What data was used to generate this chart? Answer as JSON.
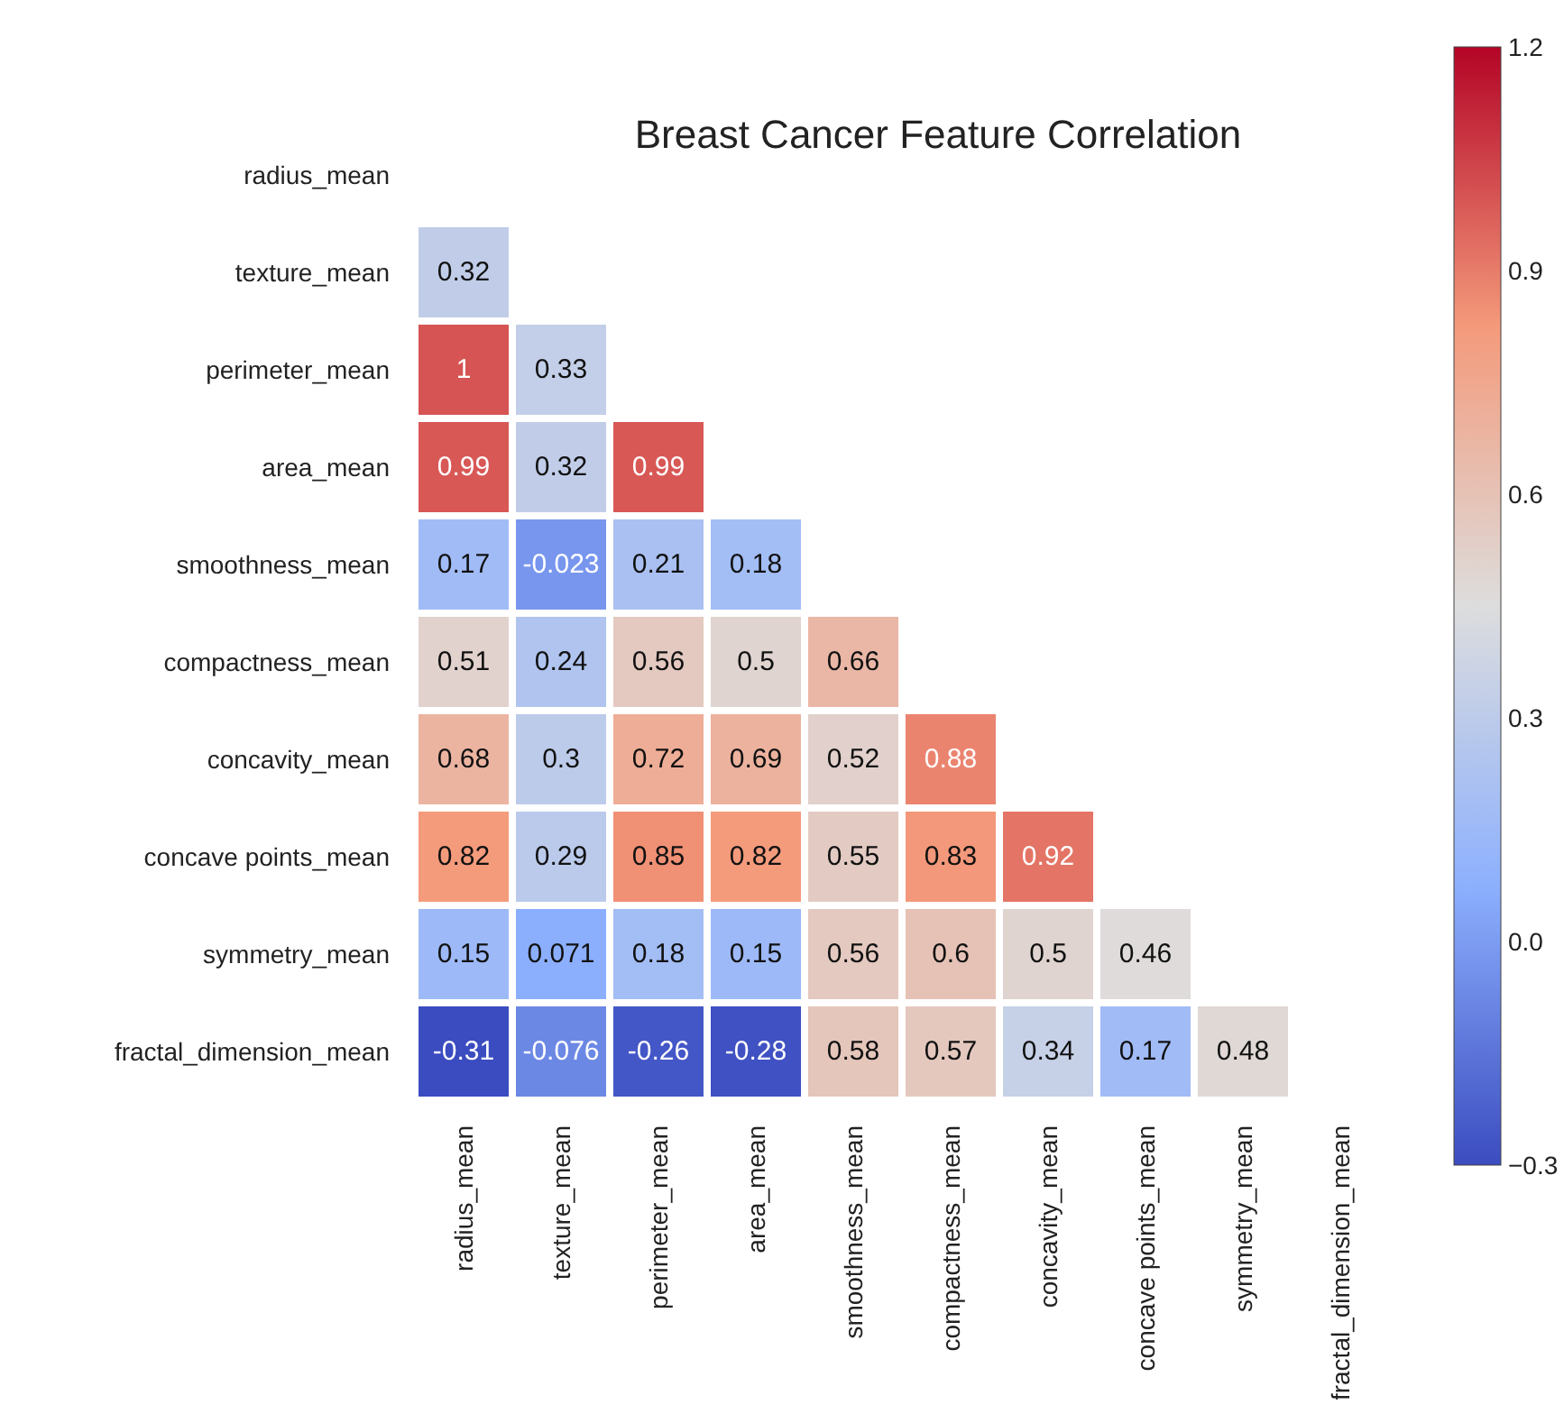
{
  "chart_data": {
    "type": "heatmap",
    "title": "Breast Cancer Feature Correlation",
    "categories": [
      "radius_mean",
      "texture_mean",
      "perimeter_mean",
      "area_mean",
      "smoothness_mean",
      "compactness_mean",
      "concavity_mean",
      "concave points_mean",
      "symmetry_mean",
      "fractal_dimension_mean"
    ],
    "y_categories": [
      "radius_mean",
      "texture_mean",
      "perimeter_mean",
      "area_mean",
      "smoothness_mean",
      "compactness_mean",
      "concavity_mean",
      "concave points_mean",
      "symmetry_mean",
      "fractal_dimension_mean"
    ],
    "cells": [
      [
        null,
        null,
        null,
        null,
        null,
        null,
        null,
        null,
        null,
        null
      ],
      [
        0.32,
        null,
        null,
        null,
        null,
        null,
        null,
        null,
        null,
        null
      ],
      [
        1,
        0.33,
        null,
        null,
        null,
        null,
        null,
        null,
        null,
        null
      ],
      [
        0.99,
        0.32,
        0.99,
        null,
        null,
        null,
        null,
        null,
        null,
        null
      ],
      [
        0.17,
        -0.023,
        0.21,
        0.18,
        null,
        null,
        null,
        null,
        null,
        null
      ],
      [
        0.51,
        0.24,
        0.56,
        0.5,
        0.66,
        null,
        null,
        null,
        null,
        null
      ],
      [
        0.68,
        0.3,
        0.72,
        0.69,
        0.52,
        0.88,
        null,
        null,
        null,
        null
      ],
      [
        0.82,
        0.29,
        0.85,
        0.82,
        0.55,
        0.83,
        0.92,
        null,
        null,
        null
      ],
      [
        0.15,
        0.071,
        0.18,
        0.15,
        0.56,
        0.6,
        0.5,
        0.46,
        null,
        null
      ],
      [
        -0.31,
        -0.076,
        -0.26,
        -0.28,
        0.58,
        0.57,
        0.34,
        0.17,
        0.48,
        null
      ]
    ],
    "data_labels": true,
    "clim": [
      -0.3,
      1.2
    ],
    "cticks": [
      {
        "value": 1.2,
        "label": "1.2"
      },
      {
        "value": 0.9,
        "label": "0.9"
      },
      {
        "value": 0.6,
        "label": "0.6"
      },
      {
        "value": 0.3,
        "label": "0.3"
      },
      {
        "value": 0,
        "label": "0.0"
      },
      {
        "value": -0.3,
        "label": "−0.3"
      }
    ]
  }
}
